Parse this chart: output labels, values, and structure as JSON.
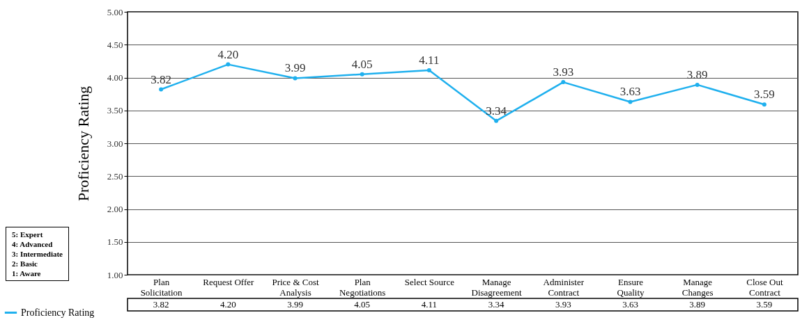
{
  "chart_data": {
    "type": "line",
    "ylabel": "Proficiency Rating",
    "categories": [
      "Plan Solicitation",
      "Request Offer",
      "Price & Cost Analysis",
      "Plan Negotiations",
      "Select Source",
      "Manage Disagreement",
      "Administer Contract",
      "Ensure Quality",
      "Manage Changes",
      "Close Out Contract"
    ],
    "series": [
      {
        "name": "Proficiency Rating",
        "color": "#1fb0ee",
        "values": [
          3.82,
          4.2,
          3.99,
          4.05,
          4.11,
          3.34,
          3.93,
          3.63,
          3.89,
          3.59
        ],
        "value_labels": [
          "3.82",
          "4.20",
          "3.99",
          "4.05",
          "4.11",
          "3.34",
          "3.93",
          "3.63",
          "3.89",
          "3.59"
        ]
      }
    ],
    "ylim": [
      1,
      5
    ],
    "yticks": [
      {
        "value": 1,
        "label": "1.00"
      },
      {
        "value": 1.5,
        "label": "1.50"
      },
      {
        "value": 2,
        "label": "2.00"
      },
      {
        "value": 2.5,
        "label": "2.50"
      },
      {
        "value": 3,
        "label": "3.00"
      },
      {
        "value": 3.5,
        "label": "3.50"
      },
      {
        "value": 4,
        "label": "4.00"
      },
      {
        "value": 4.5,
        "label": "4.50"
      },
      {
        "value": 5,
        "label": "5.00"
      }
    ],
    "grid": "y",
    "marker": "circle",
    "line_style": "solid",
    "legend": "bottom left",
    "annotations": [
      "5:  Expert",
      "4:  Advanced",
      "3:  Intermediate",
      "2:  Basic",
      "1:  Aware"
    ]
  }
}
